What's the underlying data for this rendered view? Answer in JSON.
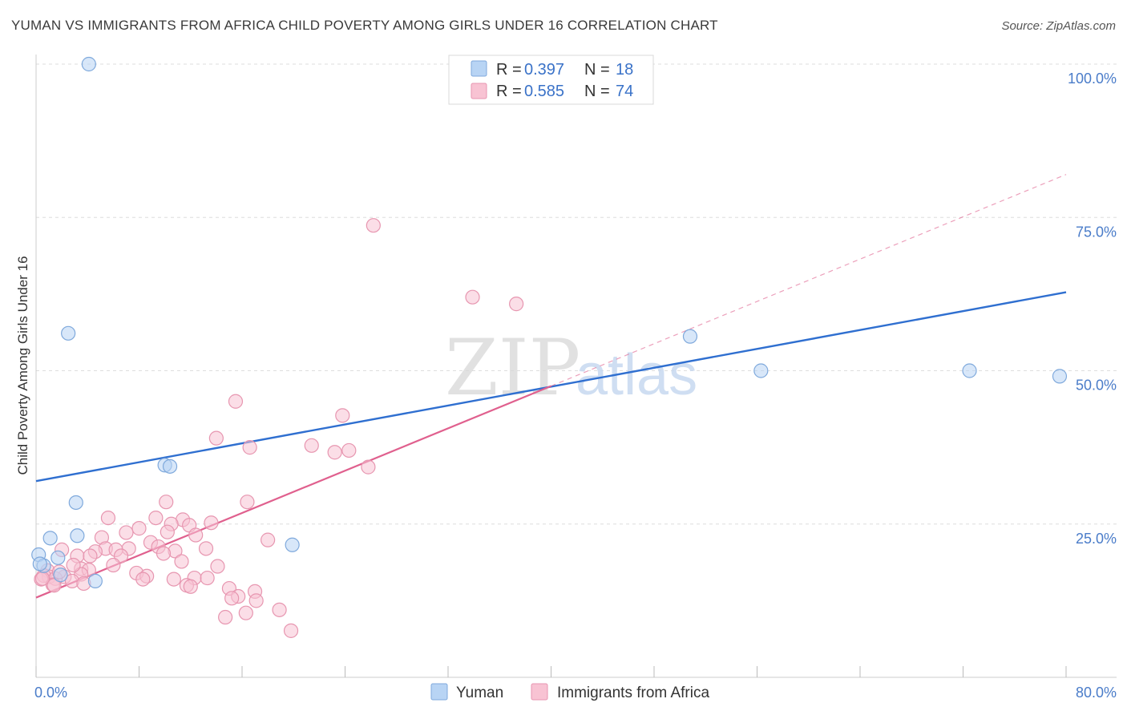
{
  "title": "YUMAN VS IMMIGRANTS FROM AFRICA CHILD POVERTY AMONG GIRLS UNDER 16 CORRELATION CHART",
  "source": "Source: ZipAtlas.com",
  "watermark": {
    "zip": "ZIP",
    "atlas": "atlas"
  },
  "colors": {
    "yuman_fill": "#b8d4f4",
    "yuman_stroke": "#7fa9dc",
    "yuman_line": "#2f6fd0",
    "africa_fill": "#f8c3d3",
    "africa_stroke": "#e796b0",
    "africa_line": "#e0608e",
    "grid": "#dddddd",
    "tick_label": "#4a7cc9"
  },
  "legend_top": {
    "rows": [
      {
        "r_label": "R =",
        "r_value": "0.397",
        "n_label": "N =",
        "n_value": "18"
      },
      {
        "r_label": "R =",
        "r_value": "0.585",
        "n_label": "N =",
        "n_value": "74"
      }
    ]
  },
  "legend_bottom": [
    "Yuman",
    "Immigrants from Africa"
  ],
  "chart_data": {
    "type": "scatter",
    "ylabel": "Child Poverty Among Girls Under 16",
    "xlim": [
      0,
      80
    ],
    "ylim": [
      0,
      100
    ],
    "x_tick_labels": [
      "0.0%",
      "80.0%"
    ],
    "y_ticks": [
      {
        "value": 25,
        "label": "25.0%"
      },
      {
        "value": 50,
        "label": "50.0%"
      },
      {
        "value": 75,
        "label": "75.0%"
      },
      {
        "value": 100,
        "label": "100.0%"
      }
    ],
    "grid": true,
    "series": [
      {
        "name": "Yuman",
        "points": [
          [
            4.1,
            100.0
          ],
          [
            2.5,
            56.1
          ],
          [
            10.0,
            34.6
          ],
          [
            10.4,
            34.4
          ],
          [
            3.1,
            28.5
          ],
          [
            1.1,
            22.7
          ],
          [
            3.2,
            23.1
          ],
          [
            19.9,
            21.6
          ],
          [
            0.2,
            20.0
          ],
          [
            1.7,
            19.5
          ],
          [
            0.6,
            18.2
          ],
          [
            1.9,
            16.7
          ],
          [
            4.6,
            15.7
          ],
          [
            50.8,
            55.6
          ],
          [
            56.3,
            50.0
          ],
          [
            72.5,
            50.0
          ],
          [
            79.5,
            49.1
          ],
          [
            0.3,
            18.5
          ]
        ],
        "trend": {
          "x": [
            0,
            80
          ],
          "y": [
            32.0,
            62.8
          ]
        }
      },
      {
        "name": "Immigrants from Africa",
        "points": [
          [
            26.2,
            73.7
          ],
          [
            33.9,
            62.0
          ],
          [
            37.3,
            60.9
          ],
          [
            15.5,
            45.0
          ],
          [
            23.8,
            42.7
          ],
          [
            14.0,
            39.0
          ],
          [
            16.6,
            37.5
          ],
          [
            21.4,
            37.8
          ],
          [
            23.2,
            36.7
          ],
          [
            24.3,
            37.0
          ],
          [
            25.8,
            34.3
          ],
          [
            10.1,
            28.6
          ],
          [
            16.4,
            28.6
          ],
          [
            5.6,
            26.0
          ],
          [
            9.3,
            26.0
          ],
          [
            11.4,
            25.7
          ],
          [
            13.6,
            25.2
          ],
          [
            10.5,
            25.0
          ],
          [
            8.0,
            24.3
          ],
          [
            7.0,
            23.6
          ],
          [
            10.2,
            23.7
          ],
          [
            11.9,
            24.8
          ],
          [
            12.4,
            23.2
          ],
          [
            5.1,
            22.8
          ],
          [
            18.0,
            22.4
          ],
          [
            8.9,
            22.0
          ],
          [
            9.5,
            21.3
          ],
          [
            7.2,
            21.0
          ],
          [
            5.4,
            21.0
          ],
          [
            13.2,
            21.0
          ],
          [
            6.2,
            20.8
          ],
          [
            4.6,
            20.5
          ],
          [
            2.0,
            20.8
          ],
          [
            3.2,
            19.8
          ],
          [
            10.8,
            20.6
          ],
          [
            6.6,
            19.8
          ],
          [
            4.2,
            19.8
          ],
          [
            9.9,
            20.2
          ],
          [
            11.3,
            18.9
          ],
          [
            14.1,
            18.1
          ],
          [
            6.0,
            18.3
          ],
          [
            3.5,
            17.7
          ],
          [
            4.1,
            17.5
          ],
          [
            0.9,
            17.4
          ],
          [
            7.8,
            17.0
          ],
          [
            3.5,
            16.8
          ],
          [
            8.6,
            16.5
          ],
          [
            2.2,
            16.4
          ],
          [
            1.0,
            16.4
          ],
          [
            0.6,
            16.6
          ],
          [
            0.4,
            16.0
          ],
          [
            1.5,
            16.1
          ],
          [
            2.8,
            15.7
          ],
          [
            3.7,
            15.3
          ],
          [
            1.3,
            15.1
          ],
          [
            0.5,
            16.1
          ],
          [
            8.3,
            16.0
          ],
          [
            10.7,
            16.0
          ],
          [
            12.3,
            16.2
          ],
          [
            13.3,
            16.2
          ],
          [
            1.4,
            15.0
          ],
          [
            11.7,
            15.0
          ],
          [
            12.0,
            14.8
          ],
          [
            2.9,
            18.3
          ],
          [
            1.8,
            17.2
          ],
          [
            15.0,
            14.5
          ],
          [
            17.0,
            14.0
          ],
          [
            15.7,
            13.2
          ],
          [
            15.2,
            12.9
          ],
          [
            17.1,
            12.5
          ],
          [
            18.9,
            11.0
          ],
          [
            14.7,
            9.8
          ],
          [
            16.3,
            10.5
          ],
          [
            19.8,
            7.6
          ]
        ],
        "trend": {
          "x": [
            0,
            40
          ],
          "y": [
            13.0,
            47.5
          ]
        },
        "trend_extension": {
          "x": [
            40,
            80
          ],
          "y": [
            47.5,
            82.0
          ]
        }
      }
    ]
  }
}
